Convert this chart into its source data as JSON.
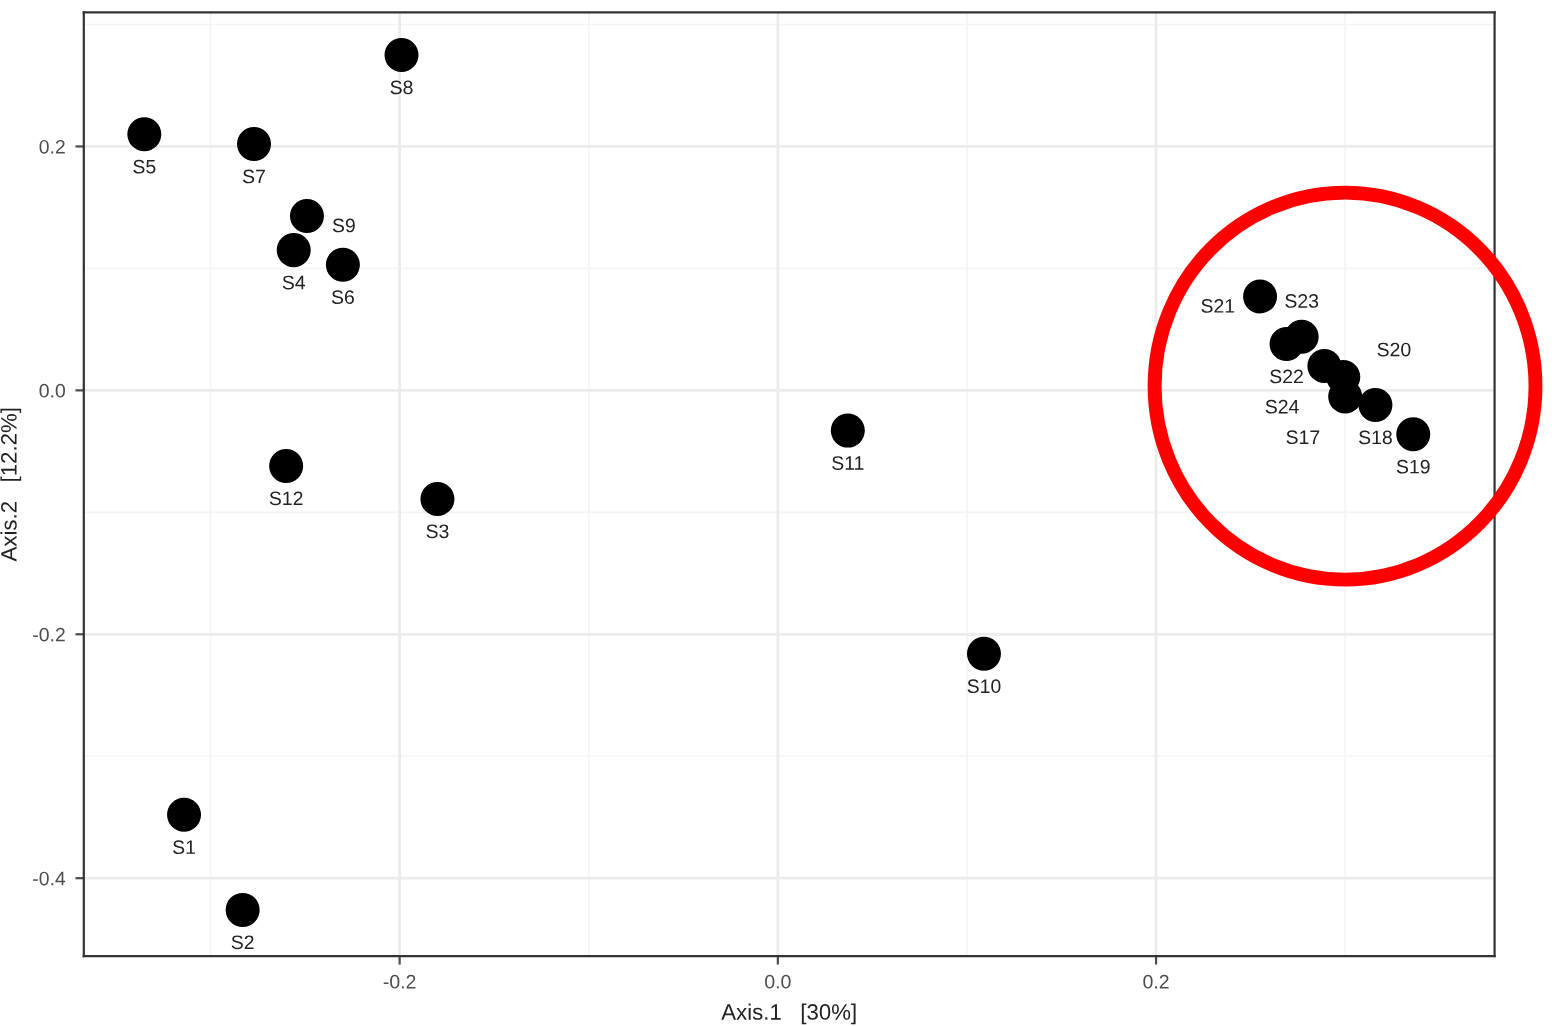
{
  "chart_data": {
    "type": "scatter",
    "xlabel": "Axis.1   [30%]",
    "ylabel": "Axis.2   [12.2%]",
    "xlim": [
      -0.367,
      0.379
    ],
    "ylim": [
      -0.464,
      0.31
    ],
    "xticks": [
      {
        "value": -0.2,
        "label": "-0.2"
      },
      {
        "value": 0.0,
        "label": "0.0"
      },
      {
        "value": 0.2,
        "label": "0.2"
      }
    ],
    "yticks": [
      {
        "value": -0.4,
        "label": "-0.4"
      },
      {
        "value": -0.2,
        "label": "-0.2"
      },
      {
        "value": 0.0,
        "label": "0.0"
      },
      {
        "value": 0.2,
        "label": "0.2"
      }
    ],
    "grid": true,
    "marker": "circle",
    "series": [
      {
        "color": "#000000",
        "x": [
          -0.335,
          -0.277,
          -0.199,
          -0.249,
          -0.256,
          -0.23,
          -0.26,
          -0.18,
          0.037,
          0.109,
          -0.314,
          -0.283,
          0.255,
          0.269,
          0.277,
          0.289,
          0.299,
          0.3,
          0.316,
          0.336
        ],
        "values": [
          0.21,
          0.202,
          0.275,
          0.143,
          0.115,
          0.103,
          -0.062,
          -0.089,
          -0.033,
          -0.216,
          -0.348,
          -0.426,
          0.077,
          0.038,
          0.044,
          0.02,
          0.011,
          -0.005,
          -0.012,
          -0.036
        ]
      }
    ],
    "annotations": [
      {
        "text": "S5",
        "x": -0.335,
        "y": 0.21
      },
      {
        "text": "S7",
        "x": -0.277,
        "y": 0.202
      },
      {
        "text": "S8",
        "x": -0.199,
        "y": 0.275
      },
      {
        "text": "S9",
        "x": -0.249,
        "y": 0.143
      },
      {
        "text": "S4",
        "x": -0.256,
        "y": 0.115
      },
      {
        "text": "S6",
        "x": -0.23,
        "y": 0.103
      },
      {
        "text": "S12",
        "x": -0.26,
        "y": -0.062
      },
      {
        "text": "S3",
        "x": -0.18,
        "y": -0.089
      },
      {
        "text": "S11",
        "x": 0.037,
        "y": -0.033
      },
      {
        "text": "S10",
        "x": 0.109,
        "y": -0.216
      },
      {
        "text": "S1",
        "x": -0.314,
        "y": -0.348
      },
      {
        "text": "S2",
        "x": -0.283,
        "y": -0.426
      },
      {
        "text": "S21",
        "x": 0.255,
        "y": 0.077
      },
      {
        "text": "S22",
        "x": 0.269,
        "y": 0.038
      },
      {
        "text": "S23",
        "x": 0.277,
        "y": 0.044
      },
      {
        "text": "S24",
        "x": 0.289,
        "y": 0.02
      },
      {
        "text": "S20",
        "x": 0.299,
        "y": 0.011
      },
      {
        "text": "S17",
        "x": 0.3,
        "y": -0.005
      },
      {
        "text": "S18",
        "x": 0.316,
        "y": -0.012
      },
      {
        "text": "S19",
        "x": 0.336,
        "y": -0.036
      }
    ]
  }
}
